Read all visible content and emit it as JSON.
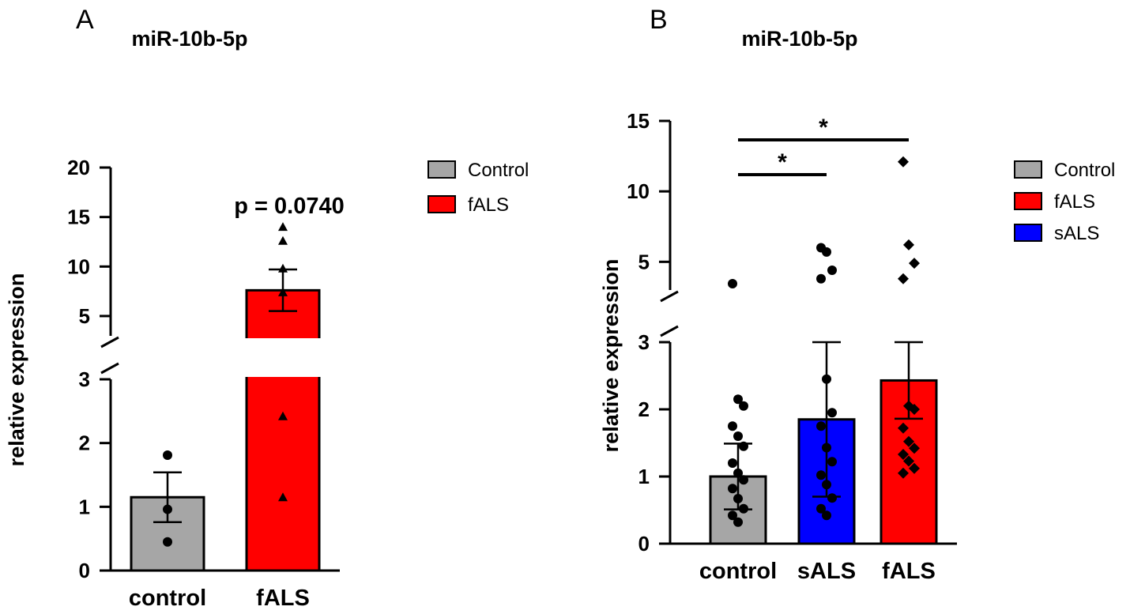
{
  "chart_data": [
    {
      "panel": "A",
      "type": "bar",
      "title": "miR-10b-5p",
      "ylabel": "relative expression",
      "xlabel": "",
      "categories": [
        "control",
        "fALS"
      ],
      "colors": [
        "#a6a6a6",
        "#ff0000"
      ],
      "means": [
        1.15,
        7.6
      ],
      "sem": [
        0.39,
        2.1
      ],
      "points": [
        [
          1.81,
          0.96,
          0.45
        ],
        [
          14.0,
          12.6,
          9.8,
          7.4,
          2.42,
          1.15
        ]
      ],
      "markers": [
        "circle",
        "triangle"
      ],
      "axis": {
        "broken": true,
        "lower_range": [
          0,
          3
        ],
        "upper_range": [
          3,
          20
        ],
        "lower_ticks": [
          0,
          1,
          2,
          3
        ],
        "upper_ticks": [
          5,
          10,
          15,
          20
        ]
      },
      "annotation": "p = 0.0740",
      "legend": [
        {
          "label": "Control",
          "color": "#a6a6a6"
        },
        {
          "label": "fALS",
          "color": "#ff0000"
        }
      ]
    },
    {
      "panel": "B",
      "type": "bar",
      "title": "miR-10b-5p",
      "ylabel": "relative expression",
      "xlabel": "",
      "categories": [
        "control",
        "sALS",
        "fALS"
      ],
      "colors": [
        "#a6a6a6",
        "#0000ff",
        "#ff0000"
      ],
      "means": [
        1.0,
        1.85,
        2.43
      ],
      "sem": [
        0.49,
        1.15,
        0.57
      ],
      "points": [
        [
          3.45,
          2.15,
          2.05,
          1.75,
          1.6,
          1.45,
          1.2,
          1.05,
          0.95,
          0.82,
          0.67,
          0.52,
          0.42,
          0.32
        ],
        [
          6.0,
          5.7,
          4.4,
          3.8,
          2.45,
          1.95,
          1.75,
          1.43,
          1.22,
          1.02,
          0.88,
          0.68,
          0.52,
          0.42
        ],
        [
          12.1,
          6.2,
          4.9,
          3.8,
          2.05,
          2.0,
          1.72,
          1.52,
          1.42,
          1.33,
          1.23,
          1.12,
          1.05
        ]
      ],
      "markers": [
        "circle",
        "circle",
        "diamond"
      ],
      "axis": {
        "broken": true,
        "lower_range": [
          0,
          3
        ],
        "upper_range": [
          3,
          15
        ],
        "lower_ticks": [
          0,
          1,
          2,
          3
        ],
        "upper_ticks": [
          5,
          10,
          15
        ]
      },
      "significance": [
        {
          "from": "control",
          "to": "sALS",
          "label": "*"
        },
        {
          "from": "control",
          "to": "fALS",
          "label": "*"
        }
      ],
      "legend": [
        {
          "label": "Control",
          "color": "#a6a6a6"
        },
        {
          "label": "fALS",
          "color": "#ff0000"
        },
        {
          "label": "sALS",
          "color": "#0000ff"
        }
      ]
    }
  ]
}
